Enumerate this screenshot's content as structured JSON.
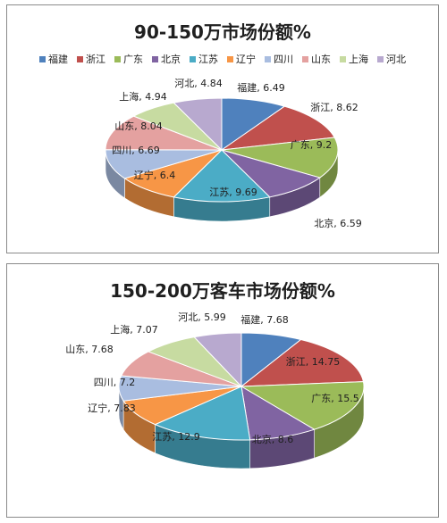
{
  "chart_data": [
    {
      "type": "pie",
      "title": "90-150万市场份额%",
      "legend": "top",
      "categories": [
        "福建",
        "浙江",
        "广东",
        "北京",
        "江苏",
        "辽宁",
        "四川",
        "山东",
        "上海",
        "河北"
      ],
      "values": [
        6.49,
        8.62,
        9.2,
        6.59,
        9.69,
        6.4,
        6.69,
        8.04,
        4.94,
        4.84
      ],
      "data_labels": [
        "福建, 6.49",
        "浙江, 8.62",
        "广东, 9.2",
        "北京, 6.59",
        "江苏, 9.69",
        "辽宁, 6.4",
        "四川, 6.69",
        "山东, 8.04",
        "上海, 4.94",
        "河北, 4.84"
      ]
    },
    {
      "type": "pie",
      "title": "150-200万客车市场份额%",
      "legend": "none",
      "categories": [
        "福建",
        "浙江",
        "广东",
        "北京",
        "江苏",
        "辽宁",
        "四川",
        "山东",
        "上海",
        "河北"
      ],
      "values": [
        7.68,
        14.75,
        15.5,
        8.6,
        12.9,
        7.83,
        7.2,
        7.68,
        7.07,
        5.99
      ],
      "data_labels": [
        "福建, 7.68",
        "浙江, 14.75",
        "广东, 15.5",
        "北京, 8.6",
        "江苏, 12.9",
        "辽宁, 7.83",
        "四川, 7.2",
        "山东, 7.68",
        "上海, 7.07",
        "河北, 5.99"
      ]
    }
  ],
  "colors": [
    "#4f81bd",
    "#c0504d",
    "#9bbb59",
    "#8064a2",
    "#4bacc6",
    "#f79646",
    "#a9bde0",
    "#e4a1a0",
    "#c7dba1",
    "#b8a9cf"
  ]
}
